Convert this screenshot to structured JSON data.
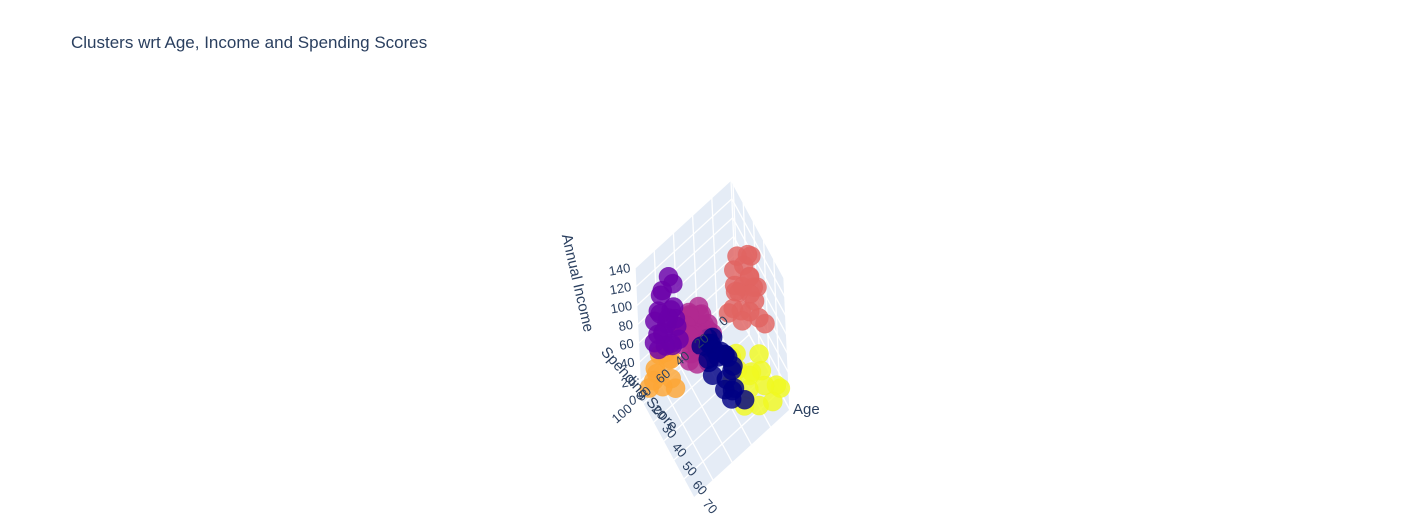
{
  "chart_data": {
    "type": "scatter",
    "title": "Clusters wrt Age, Income and Spending Scores",
    "xlabel": "Age",
    "ylabel": "Spending Score",
    "zlabel": "Annual Income",
    "x_ticks": [
      "20",
      "30",
      "40",
      "50",
      "60",
      "70"
    ],
    "y_ticks": [
      "0",
      "20",
      "40",
      "60",
      "80",
      "100"
    ],
    "z_ticks": [
      "0",
      "20",
      "40",
      "60",
      "80",
      "100",
      "120",
      "140"
    ],
    "xlim": [
      18,
      70
    ],
    "ylim": [
      0,
      100
    ],
    "zlim": [
      0,
      140
    ],
    "grid": true,
    "series": [
      {
        "color": "#6a00a8",
        "points": [
          {
            "age": 32,
            "score": 80,
            "income": 140
          },
          {
            "age": 30,
            "score": 85,
            "income": 126
          },
          {
            "age": 31,
            "score": 75,
            "income": 126
          },
          {
            "age": 29,
            "score": 86,
            "income": 120
          },
          {
            "age": 35,
            "score": 79,
            "income": 113
          },
          {
            "age": 32,
            "score": 90,
            "income": 110
          },
          {
            "age": 28,
            "score": 88,
            "income": 103
          },
          {
            "age": 33,
            "score": 83,
            "income": 101
          },
          {
            "age": 36,
            "score": 92,
            "income": 99
          },
          {
            "age": 30,
            "score": 77,
            "income": 98
          },
          {
            "age": 34,
            "score": 95,
            "income": 97
          },
          {
            "age": 27,
            "score": 91,
            "income": 93
          },
          {
            "age": 31,
            "score": 74,
            "income": 88
          },
          {
            "age": 38,
            "score": 86,
            "income": 87
          },
          {
            "age": 32,
            "score": 97,
            "income": 86
          },
          {
            "age": 29,
            "score": 81,
            "income": 85
          },
          {
            "age": 35,
            "score": 89,
            "income": 81
          },
          {
            "age": 31,
            "score": 73,
            "income": 79
          },
          {
            "age": 36,
            "score": 76,
            "income": 78
          },
          {
            "age": 33,
            "score": 94,
            "income": 78
          },
          {
            "age": 28,
            "score": 84,
            "income": 77
          },
          {
            "age": 35,
            "score": 82,
            "income": 75
          }
        ]
      },
      {
        "color": "#000083",
        "points": [
          {
            "age": 45,
            "score": 55,
            "income": 72
          },
          {
            "age": 50,
            "score": 48,
            "income": 67
          },
          {
            "age": 53,
            "score": 44,
            "income": 63
          },
          {
            "age": 43,
            "score": 51,
            "income": 64
          },
          {
            "age": 60,
            "score": 53,
            "income": 62
          },
          {
            "age": 47,
            "score": 58,
            "income": 62
          },
          {
            "age": 49,
            "score": 50,
            "income": 61
          },
          {
            "age": 40,
            "score": 46,
            "income": 60
          },
          {
            "age": 58,
            "score": 45,
            "income": 60
          },
          {
            "age": 65,
            "score": 52,
            "income": 59
          },
          {
            "age": 44,
            "score": 49,
            "income": 58
          },
          {
            "age": 67,
            "score": 55,
            "income": 57
          },
          {
            "age": 38,
            "score": 56,
            "income": 56
          },
          {
            "age": 52,
            "score": 59,
            "income": 56
          },
          {
            "age": 55,
            "score": 41,
            "income": 55
          },
          {
            "age": 48,
            "score": 42,
            "income": 54
          },
          {
            "age": 63,
            "score": 48,
            "income": 54
          },
          {
            "age": 36,
            "score": 47,
            "income": 52
          },
          {
            "age": 59,
            "score": 54,
            "income": 50
          },
          {
            "age": 46,
            "score": 40,
            "income": 48
          },
          {
            "age": 68,
            "score": 43,
            "income": 47
          },
          {
            "age": 42,
            "score": 53,
            "income": 44
          }
        ]
      },
      {
        "color": "#b12a90",
        "points": [
          {
            "age": 25,
            "score": 54,
            "income": 60
          },
          {
            "age": 27,
            "score": 46,
            "income": 58
          },
          {
            "age": 22,
            "score": 52,
            "income": 56
          },
          {
            "age": 30,
            "score": 60,
            "income": 55
          },
          {
            "age": 26,
            "score": 43,
            "income": 54
          },
          {
            "age": 33,
            "score": 50,
            "income": 52
          },
          {
            "age": 24,
            "score": 57,
            "income": 51
          },
          {
            "age": 21,
            "score": 41,
            "income": 50
          },
          {
            "age": 29,
            "score": 55,
            "income": 49
          },
          {
            "age": 35,
            "score": 47,
            "income": 48
          },
          {
            "age": 20,
            "score": 49,
            "income": 47
          },
          {
            "age": 31,
            "score": 42,
            "income": 46
          },
          {
            "age": 23,
            "score": 60,
            "income": 45
          },
          {
            "age": 28,
            "score": 39,
            "income": 44
          },
          {
            "age": 34,
            "score": 56,
            "income": 43
          },
          {
            "age": 26,
            "score": 51,
            "income": 42
          },
          {
            "age": 19,
            "score": 58,
            "income": 41
          },
          {
            "age": 32,
            "score": 45,
            "income": 40
          },
          {
            "age": 30,
            "score": 53,
            "income": 39
          },
          {
            "age": 25,
            "score": 40,
            "income": 38
          },
          {
            "age": 22,
            "score": 44,
            "income": 37
          },
          {
            "age": 36,
            "score": 59,
            "income": 36
          },
          {
            "age": 27,
            "score": 48,
            "income": 35
          },
          {
            "age": 24,
            "score": 61,
            "income": 34
          },
          {
            "age": 29,
            "score": 36,
            "income": 33
          },
          {
            "age": 31,
            "score": 62,
            "income": 32
          },
          {
            "age": 21,
            "score": 46,
            "income": 31
          },
          {
            "age": 33,
            "score": 41,
            "income": 30
          },
          {
            "age": 28,
            "score": 57,
            "income": 29
          },
          {
            "age": 23,
            "score": 52,
            "income": 28
          },
          {
            "age": 35,
            "score": 44,
            "income": 27
          },
          {
            "age": 26,
            "score": 38,
            "income": 26
          }
        ]
      },
      {
        "color": "#e16462",
        "points": [
          {
            "age": 45,
            "score": 12,
            "income": 126
          },
          {
            "age": 40,
            "score": 18,
            "income": 120
          },
          {
            "age": 42,
            "score": 6,
            "income": 113
          },
          {
            "age": 48,
            "score": 14,
            "income": 110
          },
          {
            "age": 38,
            "score": 20,
            "income": 103
          },
          {
            "age": 44,
            "score": 10,
            "income": 99
          },
          {
            "age": 50,
            "score": 16,
            "income": 98
          },
          {
            "age": 36,
            "score": 8,
            "income": 93
          },
          {
            "age": 41,
            "score": 22,
            "income": 88
          },
          {
            "age": 46,
            "score": 5,
            "income": 87
          },
          {
            "age": 52,
            "score": 19,
            "income": 86
          },
          {
            "age": 39,
            "score": 13,
            "income": 81
          },
          {
            "age": 43,
            "score": 27,
            "income": 79
          },
          {
            "age": 47,
            "score": 9,
            "income": 78
          },
          {
            "age": 35,
            "score": 17,
            "income": 78
          },
          {
            "age": 54,
            "score": 12,
            "income": 77
          },
          {
            "age": 41,
            "score": 4,
            "income": 76
          },
          {
            "age": 49,
            "score": 24,
            "income": 75
          },
          {
            "age": 37,
            "score": 15,
            "income": 73
          },
          {
            "age": 44,
            "score": 20,
            "income": 72
          },
          {
            "age": 56,
            "score": 8,
            "income": 71
          },
          {
            "age": 40,
            "score": 29,
            "income": 70
          }
        ]
      },
      {
        "color": "#fca636",
        "points": [
          {
            "age": 23,
            "score": 78,
            "income": 40
          },
          {
            "age": 21,
            "score": 82,
            "income": 37
          },
          {
            "age": 25,
            "score": 75,
            "income": 34
          },
          {
            "age": 22,
            "score": 88,
            "income": 30
          },
          {
            "age": 30,
            "score": 80,
            "income": 28
          },
          {
            "age": 24,
            "score": 92,
            "income": 25
          },
          {
            "age": 20,
            "score": 73,
            "income": 21
          },
          {
            "age": 27,
            "score": 86,
            "income": 19
          },
          {
            "age": 31,
            "score": 77,
            "income": 17
          },
          {
            "age": 22,
            "score": 95,
            "income": 16
          },
          {
            "age": 19,
            "score": 84,
            "income": 15
          }
        ]
      },
      {
        "color": "#f0f921",
        "points": [
          {
            "age": 47,
            "score": 35,
            "income": 39
          },
          {
            "age": 45,
            "score": 28,
            "income": 36
          },
          {
            "age": 50,
            "score": 32,
            "income": 33
          },
          {
            "age": 55,
            "score": 25,
            "income": 30
          },
          {
            "age": 42,
            "score": 30,
            "income": 28
          },
          {
            "age": 58,
            "score": 29,
            "income": 25
          },
          {
            "age": 52,
            "score": 20,
            "income": 23
          },
          {
            "age": 48,
            "score": 36,
            "income": 20
          },
          {
            "age": 60,
            "score": 15,
            "income": 20
          },
          {
            "age": 65,
            "score": 26,
            "income": 19
          },
          {
            "age": 53,
            "score": 11,
            "income": 18
          },
          {
            "age": 46,
            "score": 6,
            "income": 17
          },
          {
            "age": 67,
            "score": 14,
            "income": 16
          },
          {
            "age": 62,
            "score": 5,
            "income": 15
          },
          {
            "age": 59,
            "score": 35,
            "income": 15
          },
          {
            "age": 64,
            "score": 3,
            "income": 14
          }
        ]
      }
    ]
  }
}
